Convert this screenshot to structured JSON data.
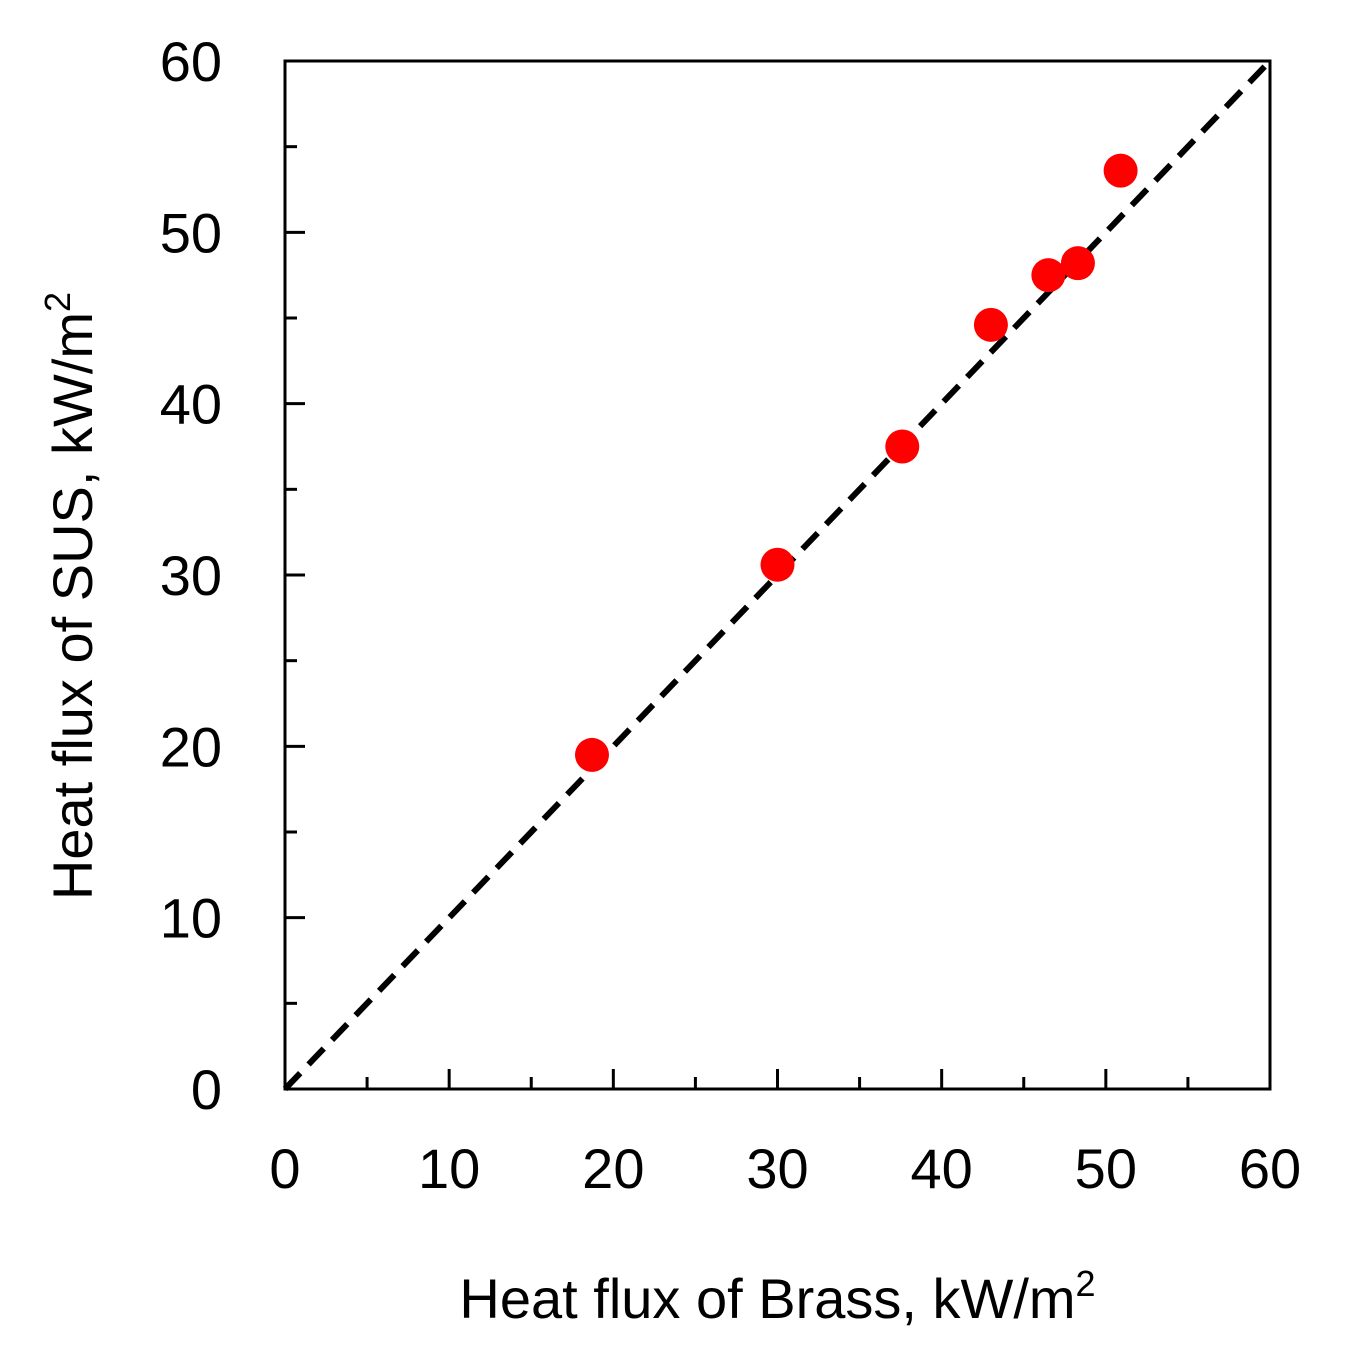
{
  "chart_data": {
    "type": "scatter",
    "xlabel": "Heat flux of Brass, kW/m",
    "xlabel_sup": "2",
    "ylabel": "Heat flux of SUS, kW/m",
    "ylabel_sup": "2",
    "xlim": [
      0,
      60
    ],
    "ylim": [
      0,
      60
    ],
    "xticks": [
      0,
      10,
      20,
      30,
      40,
      50,
      60
    ],
    "yticks": [
      0,
      10,
      20,
      30,
      40,
      50,
      60
    ],
    "xtick_labels": [
      "0",
      "10",
      "20",
      "30",
      "40",
      "50",
      "60"
    ],
    "ytick_labels": [
      "0",
      "10",
      "20",
      "30",
      "40",
      "50",
      "60"
    ],
    "minor_tick_step": 5,
    "grid": false,
    "series": [
      {
        "marker_color": "#ff0000",
        "points": [
          {
            "x": 18.7,
            "y": 19.5
          },
          {
            "x": 30.0,
            "y": 30.6
          },
          {
            "x": 37.6,
            "y": 37.5
          },
          {
            "x": 43.0,
            "y": 44.6
          },
          {
            "x": 46.5,
            "y": 47.5
          },
          {
            "x": 48.3,
            "y": 48.2
          },
          {
            "x": 50.9,
            "y": 53.6
          }
        ]
      }
    ],
    "reference_line": {
      "style": "dashed",
      "color": "#000000",
      "from": [
        0,
        0
      ],
      "to": [
        60,
        60
      ]
    }
  }
}
